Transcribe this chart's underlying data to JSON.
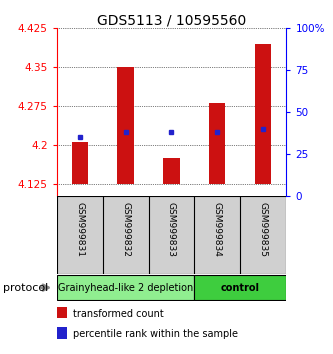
{
  "title": "GDS5113 / 10595560",
  "samples": [
    "GSM999831",
    "GSM999832",
    "GSM999833",
    "GSM999834",
    "GSM999835"
  ],
  "red_bar_bottom": 4.125,
  "red_bar_tops": [
    4.205,
    4.35,
    4.175,
    4.28,
    4.395
  ],
  "blue_square_vals": [
    4.215,
    4.225,
    4.225,
    4.225,
    4.23
  ],
  "ylim_left": [
    4.1,
    4.425
  ],
  "yticks_left": [
    4.125,
    4.2,
    4.275,
    4.35,
    4.425
  ],
  "yticks_right": [
    0,
    25,
    50,
    75,
    100
  ],
  "ylim_right": [
    0,
    100
  ],
  "groups": [
    {
      "label": "Grainyhead-like 2 depletion",
      "color": "#90EE90",
      "samples": [
        0,
        1,
        2
      ]
    },
    {
      "label": "control",
      "color": "#3ECD3E",
      "samples": [
        3,
        4
      ]
    }
  ],
  "protocol_label": "protocol",
  "bar_color": "#CC1111",
  "square_color": "#2222CC",
  "bg_color": "#ffffff",
  "plot_bg": "#ffffff",
  "tick_area_color": "#d0d0d0",
  "legend_red_label": "transformed count",
  "legend_blue_label": "percentile rank within the sample",
  "title_fontsize": 10,
  "axis_fontsize": 7.5,
  "group_label_fontsize": 7,
  "sample_fontsize": 6.5
}
